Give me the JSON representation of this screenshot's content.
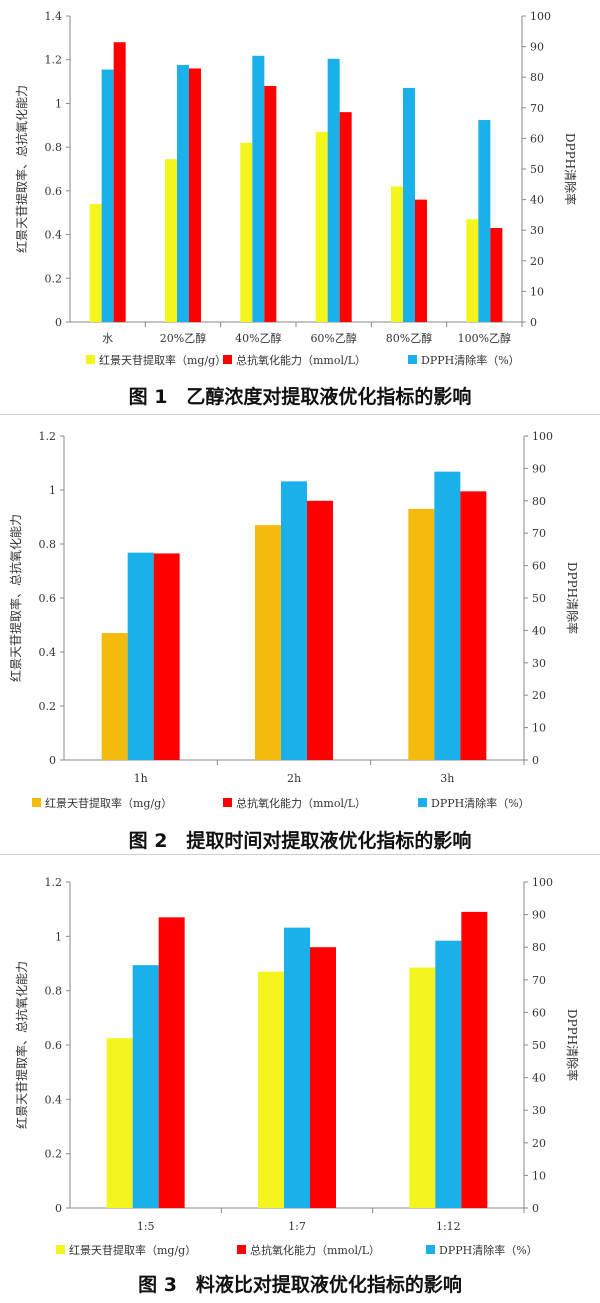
{
  "chart_data": [
    {
      "type": "bar",
      "caption": "图 1　乙醇浓度对提取液优化指标的影响",
      "categories": [
        "水",
        "20%乙醇",
        "40%乙醇",
        "60%乙醇",
        "80%乙醇",
        "100%乙醇"
      ],
      "series": [
        {
          "name": "红景天苷提取率（mg/g）",
          "axis": "left",
          "color": "#f5f51e",
          "values": [
            0.54,
            0.745,
            0.82,
            0.87,
            0.62,
            0.47
          ]
        },
        {
          "name": "总抗氧化能力（mmol/L）",
          "axis": "left",
          "color": "#ff0000",
          "values": [
            1.28,
            1.16,
            1.08,
            0.96,
            0.56,
            0.43
          ]
        },
        {
          "name": "DPPH清除率（%）",
          "axis": "right",
          "color": "#1ab0ea",
          "values": [
            82.5,
            84,
            87,
            86,
            76.5,
            66
          ]
        }
      ],
      "ylabel": "红景天苷提取率、总抗氧化能力",
      "y2label": "DPPH清除率",
      "ylim": [
        0,
        1.4
      ],
      "y2lim": [
        0,
        100
      ],
      "yticks": [
        "0",
        "0.2",
        "0.4",
        "0.6",
        "0.8",
        "1",
        "1.2",
        "1.4"
      ],
      "y2ticks": [
        "0",
        "10",
        "20",
        "30",
        "40",
        "50",
        "60",
        "70",
        "80",
        "90",
        "100"
      ],
      "legend_position": "bottom"
    },
    {
      "type": "bar",
      "caption": "图 2　提取时间对提取液优化指标的影响",
      "categories": [
        "1h",
        "2h",
        "3h"
      ],
      "series": [
        {
          "name": "红景天苷提取率（mg/g）",
          "axis": "left",
          "color": "#f5bb0c",
          "values": [
            0.47,
            0.87,
            0.93
          ]
        },
        {
          "name": "总抗氧化能力（mmol/L）",
          "axis": "left",
          "color": "#ff0000",
          "values": [
            0.765,
            0.96,
            0.995
          ]
        },
        {
          "name": "DPPH清除率（%）",
          "axis": "right",
          "color": "#1ab0ea",
          "values": [
            64,
            86,
            89
          ]
        }
      ],
      "ylabel": "红景天苷提取率、总抗氧化能力",
      "y2label": "DPPH清除率",
      "ylim": [
        0,
        1.2
      ],
      "y2lim": [
        0,
        100
      ],
      "yticks": [
        "0",
        "0.2",
        "0.4",
        "0.6",
        "0.8",
        "1",
        "1.2"
      ],
      "y2ticks": [
        "0",
        "10",
        "20",
        "30",
        "40",
        "50",
        "60",
        "70",
        "80",
        "90",
        "100"
      ],
      "legend_position": "bottom"
    },
    {
      "type": "bar",
      "caption": "图 3　料液比对提取液优化指标的影响",
      "categories": [
        "1:5",
        "1:7",
        "1:12"
      ],
      "series": [
        {
          "name": "红景天苷提取率（mg/g）",
          "axis": "left",
          "color": "#f5f51e",
          "values": [
            0.625,
            0.87,
            0.885
          ]
        },
        {
          "name": "总抗氧化能力（mmol/L）",
          "axis": "left",
          "color": "#ff0000",
          "values": [
            1.07,
            0.96,
            1.09
          ]
        },
        {
          "name": "DPPH清除率（%）",
          "axis": "right",
          "color": "#1ab0ea",
          "values": [
            74.5,
            86,
            82
          ]
        }
      ],
      "ylabel": "红景天苷提取率、总抗氧化能力",
      "y2label": "DPPH清除率",
      "ylim": [
        0,
        1.2
      ],
      "y2lim": [
        0,
        100
      ],
      "yticks": [
        "0",
        "0.2",
        "0.4",
        "0.6",
        "0.8",
        "1",
        "1.2"
      ],
      "y2ticks": [
        "0",
        "10",
        "20",
        "30",
        "40",
        "50",
        "60",
        "70",
        "80",
        "90",
        "100"
      ],
      "legend_position": "bottom"
    }
  ]
}
